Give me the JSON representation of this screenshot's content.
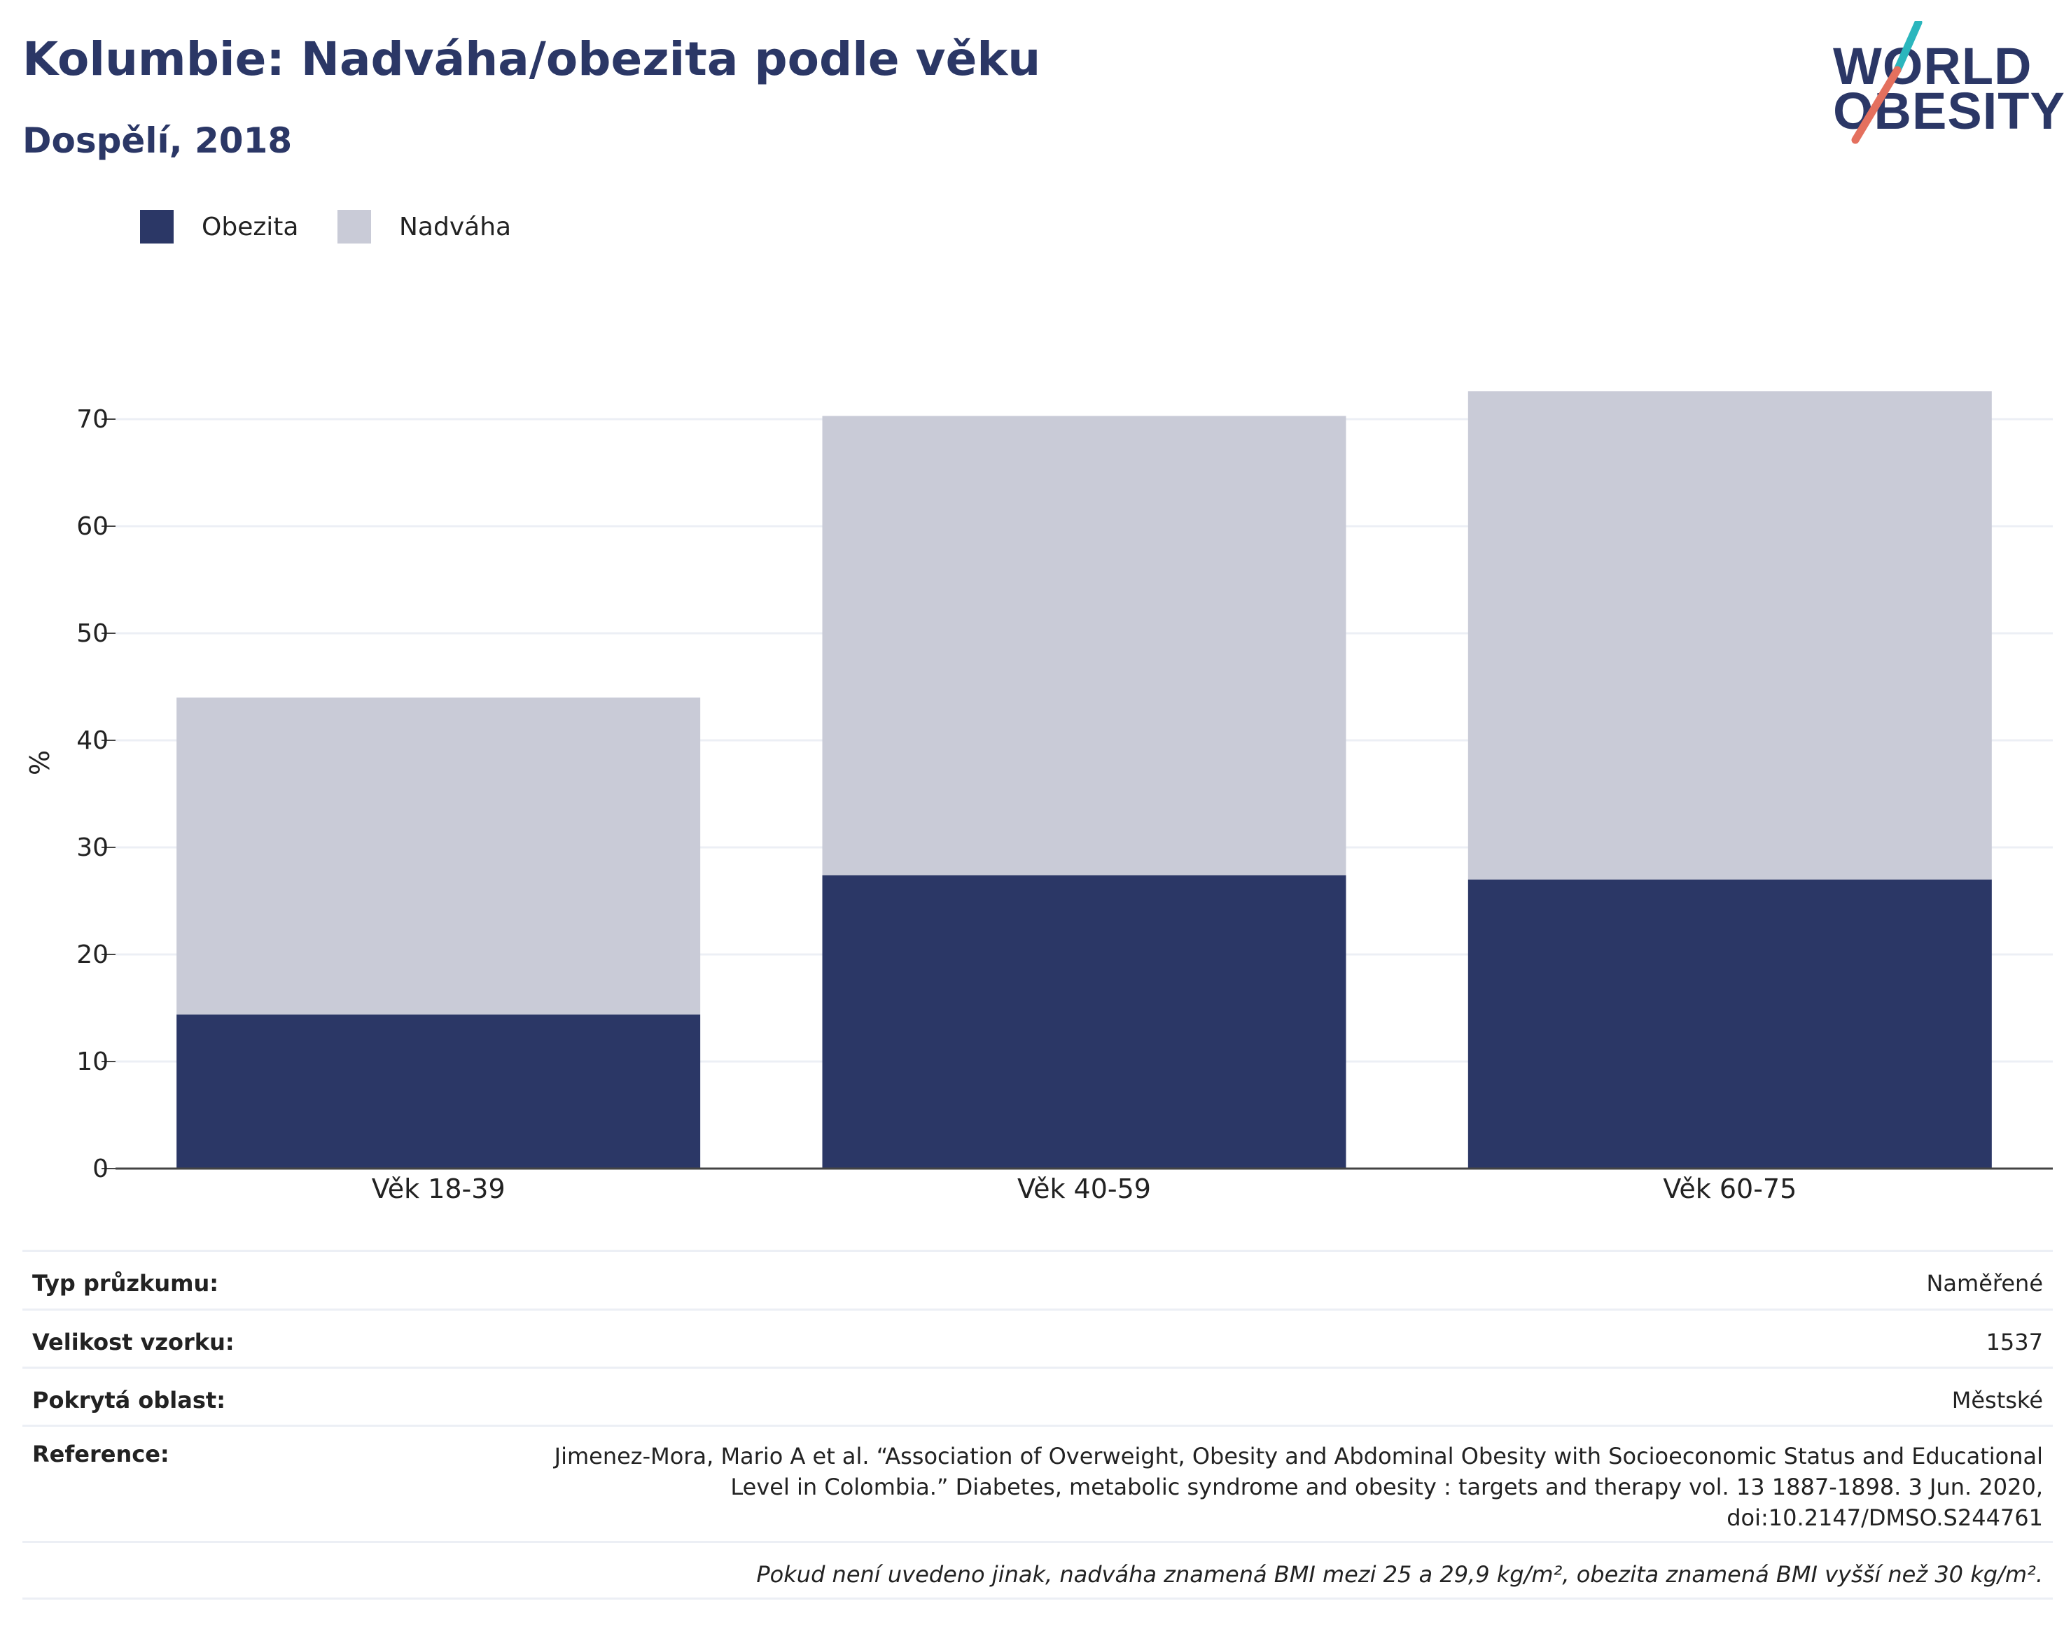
{
  "header": {
    "title": "Kolumbie: Nadváha/obezita podle věku",
    "subtitle": "Dospělí, 2018"
  },
  "logo": {
    "line1": "WORLD",
    "line2": "OBESITY",
    "slash_colors": [
      "#2bb6bd",
      "#e4705e"
    ]
  },
  "colors": {
    "obezita": "#2b3766",
    "nadvaha": "#c9cbd7",
    "grid": "#eceff5",
    "text": "#222222"
  },
  "chart_data": {
    "type": "bar",
    "stacked": true,
    "categories": [
      "Věk 18-39",
      "Věk 40-59",
      "Věk 60-75"
    ],
    "series": [
      {
        "name": "Obezita",
        "values": [
          14.4,
          27.4,
          27.0
        ]
      },
      {
        "name": "Nadváha",
        "values": [
          29.6,
          42.9,
          45.6
        ]
      }
    ],
    "ylabel": "%",
    "xlabel": "",
    "ylim": [
      0,
      75
    ],
    "yticks": [
      0,
      10,
      20,
      30,
      40,
      50,
      60,
      70
    ],
    "grid": true,
    "legend_position": "top-left"
  },
  "info": {
    "rows": [
      {
        "key": "Typ průzkumu:",
        "value": "Naměřené"
      },
      {
        "key": "Velikost vzorku:",
        "value": "1537"
      },
      {
        "key": "Pokrytá oblast:",
        "value": "Městské"
      }
    ],
    "reference_key": "Reference:",
    "reference_value": "Jimenez-Mora, Mario A et al. “Association of Overweight, Obesity and Abdominal Obesity with Socioeconomic Status and Educational Level in Colombia.” Diabetes, metabolic syndrome and obesity : targets and therapy vol. 13 1887-1898. 3 Jun. 2020, doi:10.2147/DMSO.S244761",
    "note": "Pokud není uvedeno jinak, nadváha znamená BMI mezi 25 a 29,9 kg/m², obezita znamená BMI vyšší než 30 kg/m²."
  }
}
